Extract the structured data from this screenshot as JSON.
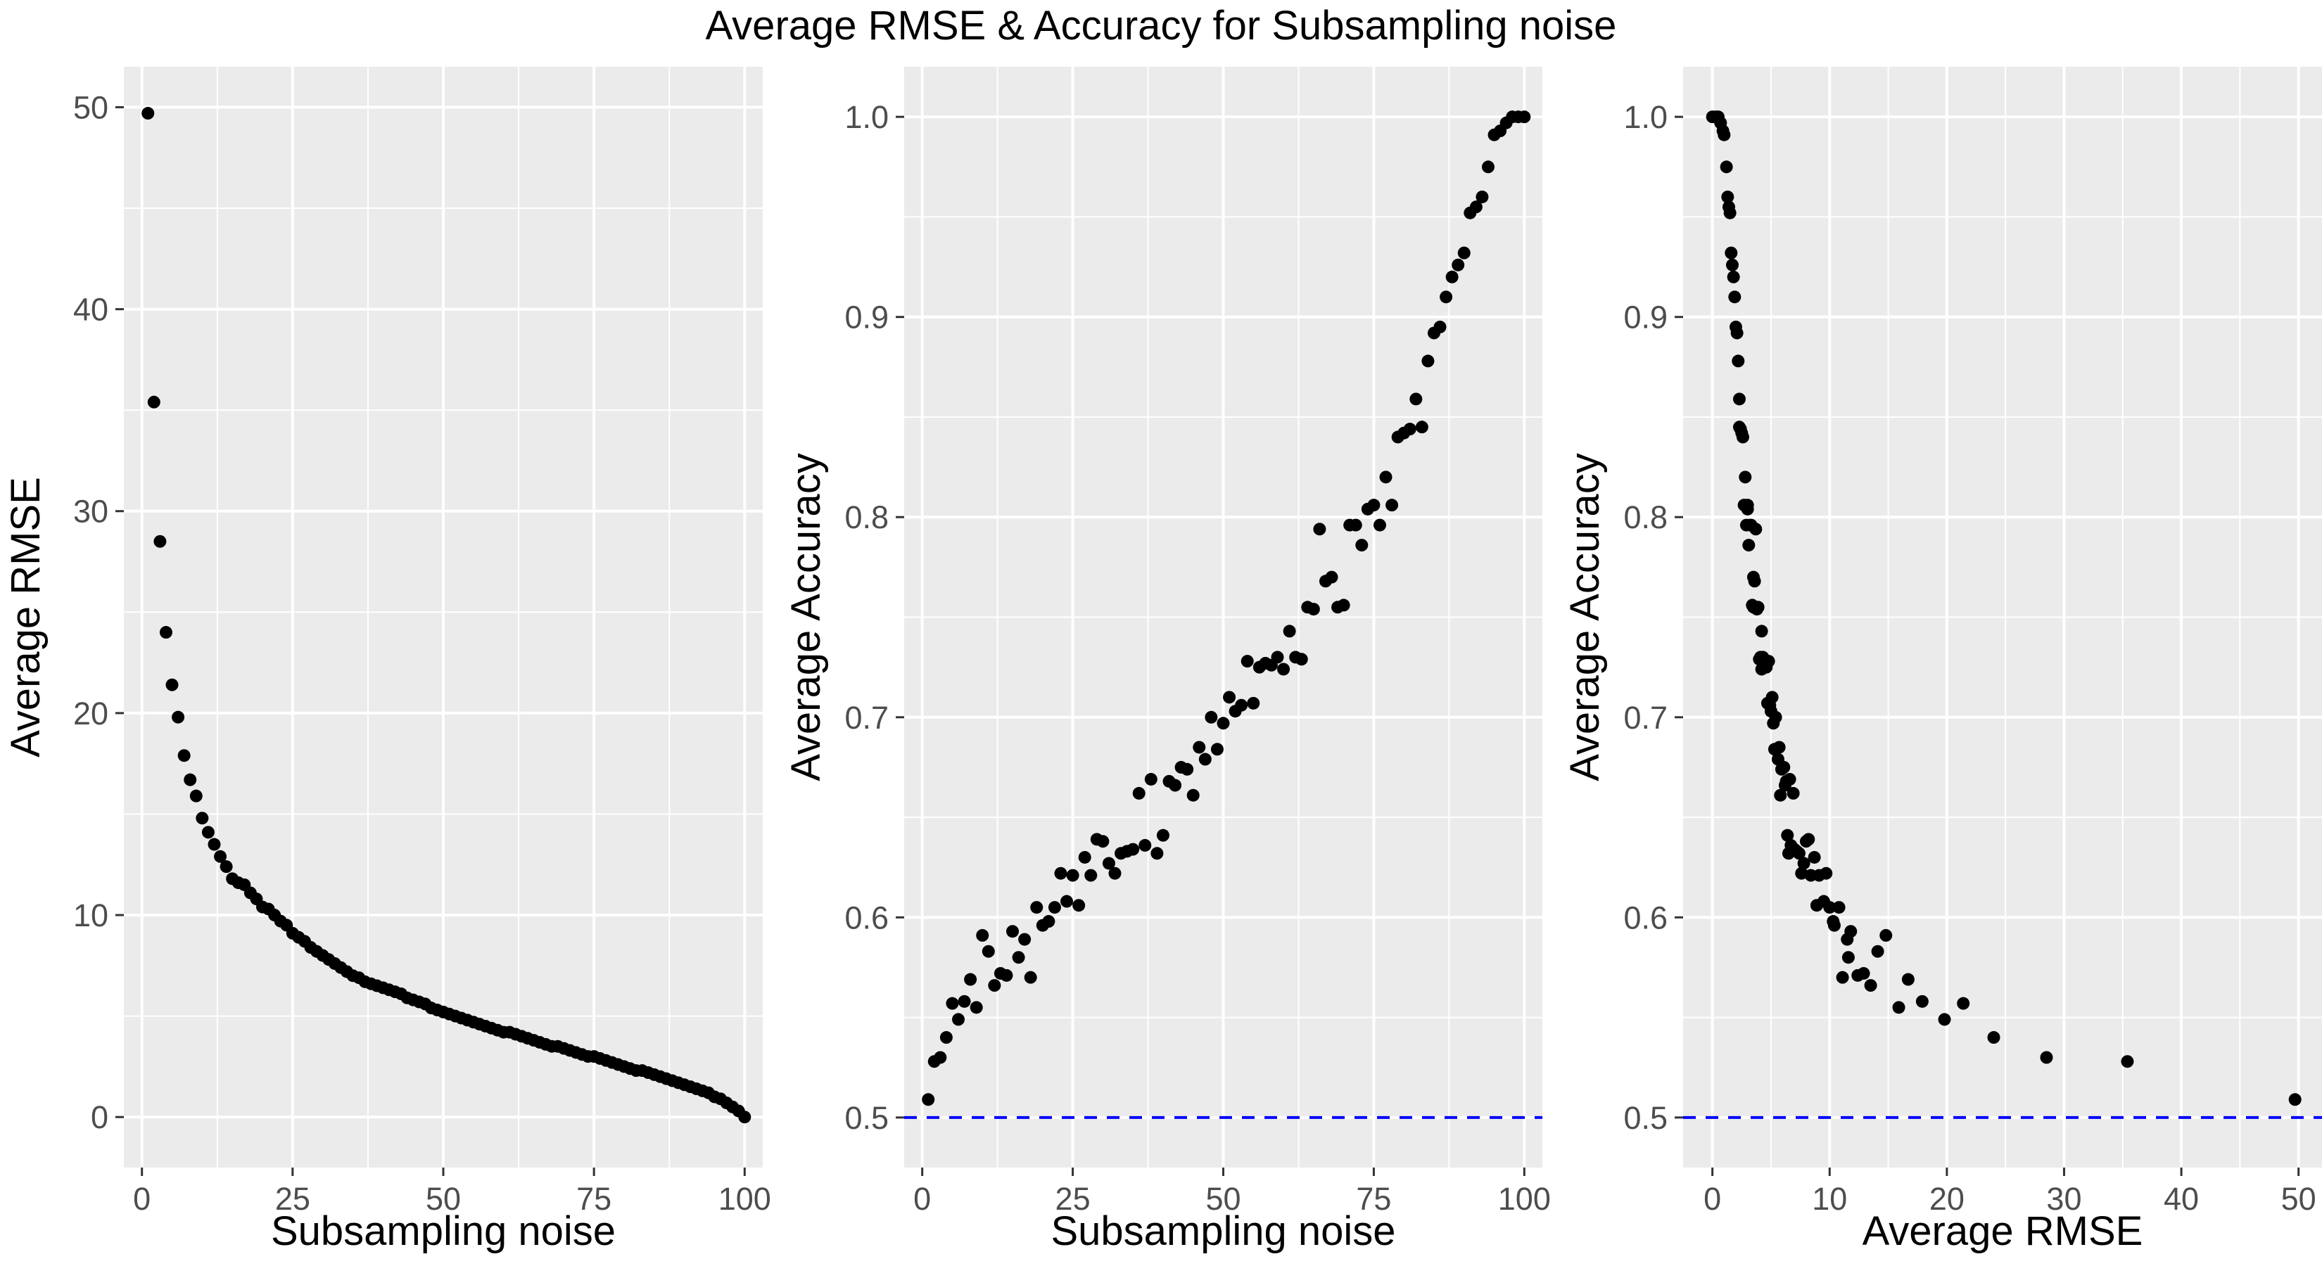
{
  "figure": {
    "title": "Average RMSE & Accuracy for Subsampling noise"
  },
  "chart_data": [
    {
      "type": "scatter",
      "title": "",
      "xlabel": "Subsampling noise",
      "ylabel": "Average RMSE",
      "xlim": [
        -3,
        103
      ],
      "ylim": [
        -2.5,
        52
      ],
      "xticks": [
        0,
        25,
        50,
        75,
        100
      ],
      "yticks": [
        0,
        10,
        20,
        30,
        40,
        50
      ],
      "grid": true,
      "point_color": "#000000",
      "points": [
        [
          1,
          49.7
        ],
        [
          2,
          35.4
        ],
        [
          3,
          28.5
        ],
        [
          4,
          24.0
        ],
        [
          5,
          21.4
        ],
        [
          6,
          19.8
        ],
        [
          7,
          17.9
        ],
        [
          8,
          16.7
        ],
        [
          9,
          15.9
        ],
        [
          10,
          14.8
        ],
        [
          11,
          14.1
        ],
        [
          12,
          13.5
        ],
        [
          13,
          12.9
        ],
        [
          14,
          12.4
        ],
        [
          15,
          11.8
        ],
        [
          16,
          11.6
        ],
        [
          17,
          11.5
        ],
        [
          18,
          11.1
        ],
        [
          19,
          10.8
        ],
        [
          20,
          10.4
        ],
        [
          21,
          10.3
        ],
        [
          22,
          10.0
        ],
        [
          23,
          9.7
        ],
        [
          24,
          9.5
        ],
        [
          25,
          9.1
        ],
        [
          26,
          8.9
        ],
        [
          27,
          8.7
        ],
        [
          28,
          8.4
        ],
        [
          29,
          8.2
        ],
        [
          30,
          8.0
        ],
        [
          31,
          7.8
        ],
        [
          32,
          7.6
        ],
        [
          33,
          7.4
        ],
        [
          34,
          7.2
        ],
        [
          35,
          7.0
        ],
        [
          36,
          6.9
        ],
        [
          37,
          6.7
        ],
        [
          38,
          6.6
        ],
        [
          39,
          6.5
        ],
        [
          40,
          6.4
        ],
        [
          41,
          6.3
        ],
        [
          42,
          6.2
        ],
        [
          43,
          6.1
        ],
        [
          44,
          5.9
        ],
        [
          45,
          5.8
        ],
        [
          46,
          5.7
        ],
        [
          47,
          5.6
        ],
        [
          48,
          5.4
        ],
        [
          49,
          5.3
        ],
        [
          50,
          5.2
        ],
        [
          51,
          5.1
        ],
        [
          52,
          5.0
        ],
        [
          53,
          4.9
        ],
        [
          54,
          4.8
        ],
        [
          55,
          4.7
        ],
        [
          56,
          4.6
        ],
        [
          57,
          4.5
        ],
        [
          58,
          4.4
        ],
        [
          59,
          4.3
        ],
        [
          60,
          4.2
        ],
        [
          61,
          4.2
        ],
        [
          62,
          4.1
        ],
        [
          63,
          4.0
        ],
        [
          64,
          3.9
        ],
        [
          65,
          3.8
        ],
        [
          66,
          3.7
        ],
        [
          67,
          3.6
        ],
        [
          68,
          3.5
        ],
        [
          69,
          3.5
        ],
        [
          70,
          3.4
        ],
        [
          71,
          3.3
        ],
        [
          72,
          3.2
        ],
        [
          73,
          3.1
        ],
        [
          74,
          3.0
        ],
        [
          75,
          3.0
        ],
        [
          76,
          2.9
        ],
        [
          77,
          2.8
        ],
        [
          78,
          2.7
        ],
        [
          79,
          2.6
        ],
        [
          80,
          2.5
        ],
        [
          81,
          2.4
        ],
        [
          82,
          2.3
        ],
        [
          83,
          2.3
        ],
        [
          84,
          2.2
        ],
        [
          85,
          2.1
        ],
        [
          86,
          2.0
        ],
        [
          87,
          1.9
        ],
        [
          88,
          1.8
        ],
        [
          89,
          1.7
        ],
        [
          90,
          1.6
        ],
        [
          91,
          1.5
        ],
        [
          92,
          1.4
        ],
        [
          93,
          1.3
        ],
        [
          94,
          1.2
        ],
        [
          95,
          1.0
        ],
        [
          96,
          0.9
        ],
        [
          97,
          0.7
        ],
        [
          98,
          0.5
        ],
        [
          99,
          0.3
        ],
        [
          100,
          0.0
        ]
      ]
    },
    {
      "type": "scatter",
      "title": "",
      "xlabel": "Subsampling noise",
      "ylabel": "Average Accuracy",
      "xlim": [
        -3,
        103
      ],
      "ylim": [
        0.475,
        1.025
      ],
      "xticks": [
        0,
        25,
        50,
        75,
        100
      ],
      "yticks": [
        0.5,
        0.6,
        0.7,
        0.8,
        0.9,
        1.0
      ],
      "ytick_decimals": 1,
      "grid": true,
      "point_color": "#000000",
      "reference_line": {
        "y": 0.5,
        "color": "#0000ff",
        "style": "dashed"
      },
      "points": [
        [
          1,
          0.509
        ],
        [
          2,
          0.528
        ],
        [
          3,
          0.53
        ],
        [
          4,
          0.54
        ],
        [
          5,
          0.557
        ],
        [
          6,
          0.549
        ],
        [
          7,
          0.558
        ],
        [
          8,
          0.569
        ],
        [
          9,
          0.555
        ],
        [
          10,
          0.591
        ],
        [
          11,
          0.583
        ],
        [
          12,
          0.566
        ],
        [
          13,
          0.572
        ],
        [
          14,
          0.571
        ],
        [
          15,
          0.593
        ],
        [
          16,
          0.58
        ],
        [
          17,
          0.589
        ],
        [
          18,
          0.57
        ],
        [
          19,
          0.605
        ],
        [
          20,
          0.596
        ],
        [
          21,
          0.598
        ],
        [
          22,
          0.605
        ],
        [
          23,
          0.622
        ],
        [
          24,
          0.608
        ],
        [
          25,
          0.621
        ],
        [
          26,
          0.606
        ],
        [
          27,
          0.63
        ],
        [
          28,
          0.621
        ],
        [
          29,
          0.639
        ],
        [
          30,
          0.638
        ],
        [
          31,
          0.627
        ],
        [
          32,
          0.622
        ],
        [
          33,
          0.632
        ],
        [
          34,
          0.633
        ],
        [
          35,
          0.634
        ],
        [
          36,
          0.662
        ],
        [
          37,
          0.636
        ],
        [
          38,
          0.669
        ],
        [
          39,
          0.632
        ],
        [
          40,
          0.641
        ],
        [
          41,
          0.668
        ],
        [
          42,
          0.666
        ],
        [
          43,
          0.675
        ],
        [
          44,
          0.674
        ],
        [
          45,
          0.661
        ],
        [
          46,
          0.685
        ],
        [
          47,
          0.679
        ],
        [
          48,
          0.7
        ],
        [
          49,
          0.684
        ],
        [
          50,
          0.697
        ],
        [
          51,
          0.71
        ],
        [
          52,
          0.703
        ],
        [
          53,
          0.706
        ],
        [
          54,
          0.728
        ],
        [
          55,
          0.707
        ],
        [
          56,
          0.725
        ],
        [
          57,
          0.727
        ],
        [
          58,
          0.726
        ],
        [
          59,
          0.73
        ],
        [
          60,
          0.724
        ],
        [
          61,
          0.743
        ],
        [
          62,
          0.73
        ],
        [
          63,
          0.729
        ],
        [
          64,
          0.755
        ],
        [
          65,
          0.754
        ],
        [
          66,
          0.794
        ],
        [
          67,
          0.768
        ],
        [
          68,
          0.77
        ],
        [
          69,
          0.755
        ],
        [
          70,
          0.756
        ],
        [
          71,
          0.796
        ],
        [
          72,
          0.796
        ],
        [
          73,
          0.786
        ],
        [
          74,
          0.804
        ],
        [
          75,
          0.806
        ],
        [
          76,
          0.796
        ],
        [
          77,
          0.82
        ],
        [
          78,
          0.806
        ],
        [
          79,
          0.84
        ],
        [
          80,
          0.842
        ],
        [
          81,
          0.844
        ],
        [
          82,
          0.859
        ],
        [
          83,
          0.845
        ],
        [
          84,
          0.878
        ],
        [
          85,
          0.892
        ],
        [
          86,
          0.895
        ],
        [
          87,
          0.91
        ],
        [
          88,
          0.92
        ],
        [
          89,
          0.926
        ],
        [
          90,
          0.932
        ],
        [
          91,
          0.952
        ],
        [
          92,
          0.955
        ],
        [
          93,
          0.96
        ],
        [
          94,
          0.975
        ],
        [
          95,
          0.991
        ],
        [
          96,
          0.993
        ],
        [
          97,
          0.997
        ],
        [
          98,
          1.0
        ],
        [
          99,
          1.0
        ],
        [
          100,
          1.0
        ]
      ]
    },
    {
      "type": "scatter",
      "title": "",
      "xlabel": "Average RMSE",
      "ylabel": "Average Accuracy",
      "xlim": [
        -2.5,
        52
      ],
      "ylim": [
        0.475,
        1.025
      ],
      "xticks": [
        0,
        10,
        20,
        30,
        40,
        50
      ],
      "yticks": [
        0.5,
        0.6,
        0.7,
        0.8,
        0.9,
        1.0
      ],
      "ytick_decimals": 1,
      "grid": true,
      "point_color": "#000000",
      "reference_line": {
        "y": 0.5,
        "color": "#0000ff",
        "style": "dashed"
      },
      "points": [
        [
          49.7,
          0.509
        ],
        [
          35.4,
          0.528
        ],
        [
          28.5,
          0.53
        ],
        [
          24.0,
          0.54
        ],
        [
          21.4,
          0.557
        ],
        [
          19.8,
          0.549
        ],
        [
          17.9,
          0.558
        ],
        [
          16.7,
          0.569
        ],
        [
          15.9,
          0.555
        ],
        [
          14.8,
          0.591
        ],
        [
          14.1,
          0.583
        ],
        [
          13.5,
          0.566
        ],
        [
          12.9,
          0.572
        ],
        [
          12.4,
          0.571
        ],
        [
          11.8,
          0.593
        ],
        [
          11.6,
          0.58
        ],
        [
          11.5,
          0.589
        ],
        [
          11.1,
          0.57
        ],
        [
          10.8,
          0.605
        ],
        [
          10.4,
          0.596
        ],
        [
          10.3,
          0.598
        ],
        [
          10.0,
          0.605
        ],
        [
          9.7,
          0.622
        ],
        [
          9.5,
          0.608
        ],
        [
          9.1,
          0.621
        ],
        [
          8.9,
          0.606
        ],
        [
          8.7,
          0.63
        ],
        [
          8.4,
          0.621
        ],
        [
          8.2,
          0.639
        ],
        [
          8.0,
          0.638
        ],
        [
          7.8,
          0.627
        ],
        [
          7.6,
          0.622
        ],
        [
          7.4,
          0.632
        ],
        [
          7.2,
          0.633
        ],
        [
          7.0,
          0.634
        ],
        [
          6.9,
          0.662
        ],
        [
          6.7,
          0.636
        ],
        [
          6.6,
          0.669
        ],
        [
          6.5,
          0.632
        ],
        [
          6.4,
          0.641
        ],
        [
          6.3,
          0.668
        ],
        [
          6.2,
          0.666
        ],
        [
          6.1,
          0.675
        ],
        [
          5.9,
          0.674
        ],
        [
          5.8,
          0.661
        ],
        [
          5.7,
          0.685
        ],
        [
          5.6,
          0.679
        ],
        [
          5.4,
          0.7
        ],
        [
          5.3,
          0.684
        ],
        [
          5.2,
          0.697
        ],
        [
          5.1,
          0.71
        ],
        [
          5.0,
          0.703
        ],
        [
          4.9,
          0.706
        ],
        [
          4.8,
          0.728
        ],
        [
          4.7,
          0.707
        ],
        [
          4.6,
          0.725
        ],
        [
          4.5,
          0.727
        ],
        [
          4.4,
          0.726
        ],
        [
          4.3,
          0.73
        ],
        [
          4.2,
          0.724
        ],
        [
          4.2,
          0.743
        ],
        [
          4.1,
          0.73
        ],
        [
          4.0,
          0.729
        ],
        [
          3.9,
          0.755
        ],
        [
          3.8,
          0.754
        ],
        [
          3.7,
          0.794
        ],
        [
          3.6,
          0.768
        ],
        [
          3.5,
          0.77
        ],
        [
          3.5,
          0.755
        ],
        [
          3.4,
          0.756
        ],
        [
          3.3,
          0.796
        ],
        [
          3.2,
          0.796
        ],
        [
          3.1,
          0.786
        ],
        [
          3.0,
          0.804
        ],
        [
          3.0,
          0.806
        ],
        [
          2.9,
          0.796
        ],
        [
          2.8,
          0.82
        ],
        [
          2.7,
          0.806
        ],
        [
          2.6,
          0.84
        ],
        [
          2.5,
          0.842
        ],
        [
          2.4,
          0.844
        ],
        [
          2.3,
          0.859
        ],
        [
          2.3,
          0.845
        ],
        [
          2.2,
          0.878
        ],
        [
          2.1,
          0.892
        ],
        [
          2.0,
          0.895
        ],
        [
          1.9,
          0.91
        ],
        [
          1.8,
          0.92
        ],
        [
          1.7,
          0.926
        ],
        [
          1.6,
          0.932
        ],
        [
          1.5,
          0.952
        ],
        [
          1.4,
          0.955
        ],
        [
          1.3,
          0.96
        ],
        [
          1.2,
          0.975
        ],
        [
          1.0,
          0.991
        ],
        [
          0.9,
          0.993
        ],
        [
          0.7,
          0.997
        ],
        [
          0.5,
          1.0
        ],
        [
          0.3,
          1.0
        ],
        [
          0.0,
          1.0
        ]
      ]
    }
  ]
}
